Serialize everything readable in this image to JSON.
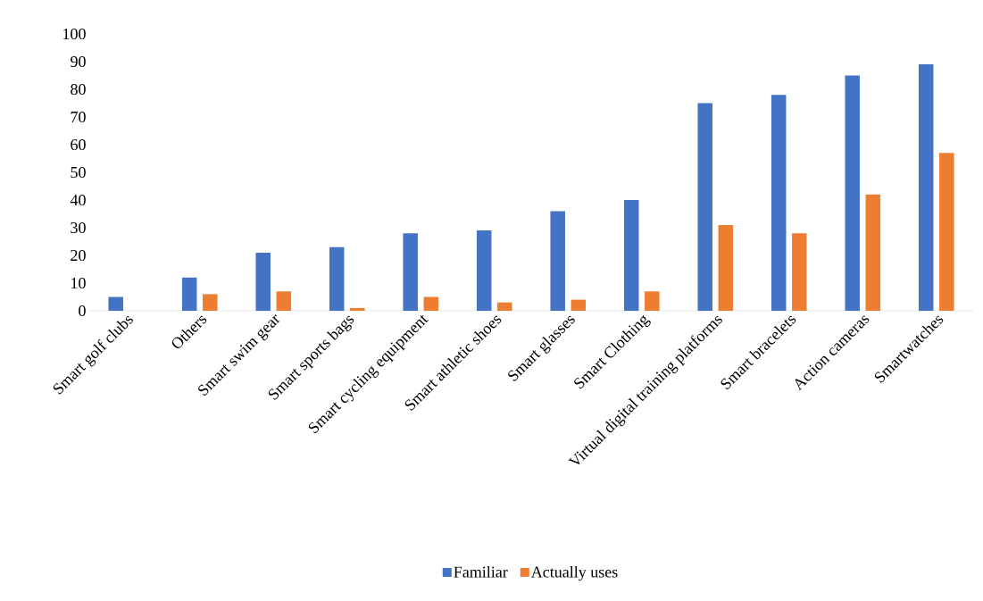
{
  "chart_data": {
    "type": "bar",
    "categories": [
      "Smart golf clubs",
      "Others",
      "Smart swim gear",
      "Smart sports bags",
      "Smart cycling equipment",
      "Smart athletic shoes",
      "Smart glasses",
      "Smart Clothing",
      "Virtual digital training platforms",
      "Smart bracelets",
      "Action cameras",
      "Smartwatches"
    ],
    "series": [
      {
        "name": "Familiar",
        "color": "#4472c4",
        "values": [
          5,
          12,
          21,
          23,
          28,
          29,
          36,
          40,
          75,
          78,
          85,
          89
        ]
      },
      {
        "name": "Actually uses",
        "color": "#ed7d31",
        "values": [
          0,
          6,
          7,
          1,
          5,
          3,
          4,
          7,
          31,
          28,
          42,
          57
        ]
      }
    ],
    "ylim": [
      0,
      100
    ],
    "yticks": [
      0,
      10,
      20,
      30,
      40,
      50,
      60,
      70,
      80,
      90,
      100
    ],
    "legend": "bottom"
  }
}
